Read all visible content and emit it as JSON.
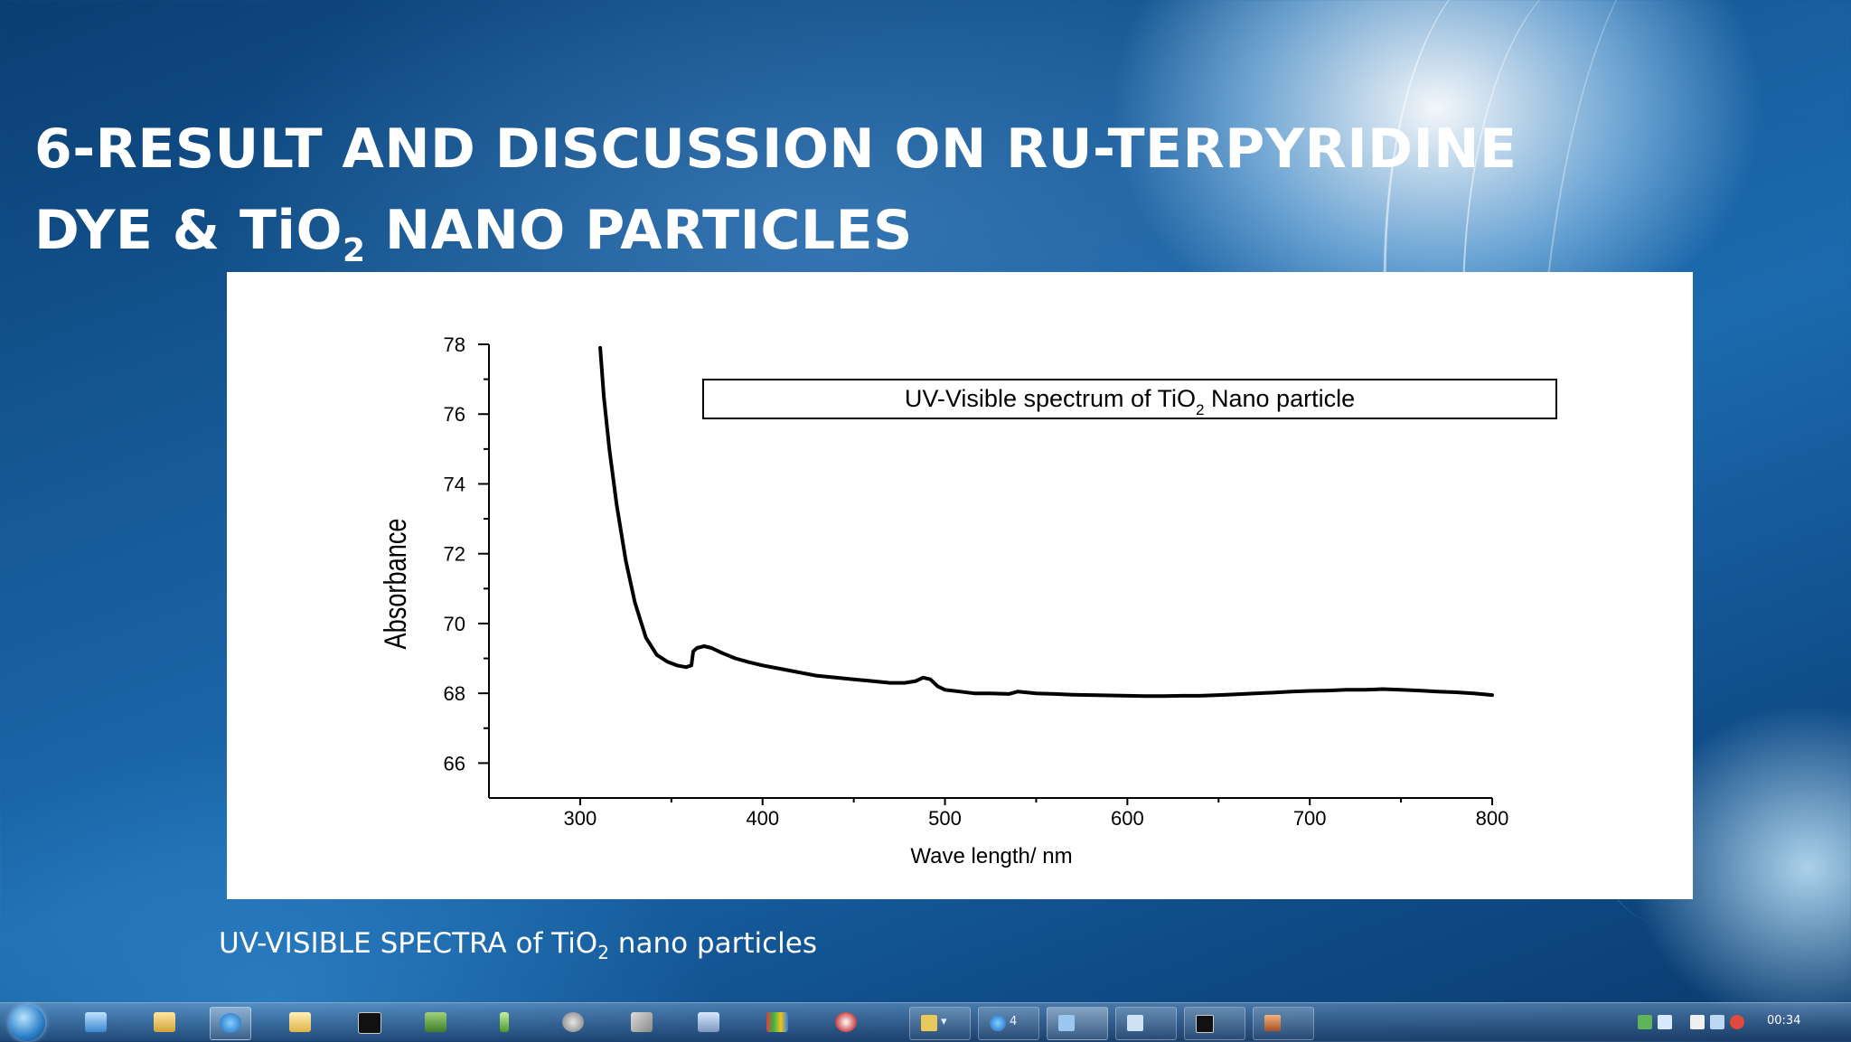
{
  "slide": {
    "title_line1": "6-RESULT AND DISCUSSION ON RU-TERPYRIDINE",
    "title_line2_pre": "DYE & TiO",
    "title_line2_sub": "2",
    "title_line2_post": " NANO PARTICLES",
    "caption_pre": "UV-VISIBLE SPECTRA of TiO",
    "caption_sub": "2",
    "caption_post": " nano particles"
  },
  "chart_data": {
    "type": "line",
    "title_pre": "UV-Visible spectrum of TiO",
    "title_sub": "2",
    "title_post": " Nano particle",
    "xlabel": "Wave length/ nm",
    "ylabel": "Absorbance",
    "xlim": [
      250,
      800
    ],
    "ylim": [
      65,
      78
    ],
    "xticks": [
      300,
      400,
      500,
      600,
      700,
      800
    ],
    "yticks": [
      66,
      68,
      70,
      72,
      74,
      76,
      78
    ],
    "grid": false,
    "legend": "none",
    "line_color": "#000000",
    "series": [
      {
        "x": [
          311,
          313,
          316,
          320,
          325,
          330,
          336,
          342,
          348,
          353,
          358,
          361,
          362,
          364,
          368,
          372,
          378,
          385,
          392,
          400,
          410,
          420,
          430,
          440,
          450,
          460,
          470,
          478,
          484,
          488,
          492,
          496,
          500,
          508,
          516,
          525,
          535,
          540,
          550,
          560,
          570,
          580,
          590,
          600,
          610,
          620,
          630,
          640,
          650,
          660,
          670,
          680,
          690,
          700,
          710,
          720,
          730,
          740,
          750,
          760,
          770,
          780,
          790,
          800
        ],
        "y": [
          77.9,
          76.5,
          75.0,
          73.4,
          71.8,
          70.6,
          69.6,
          69.1,
          68.9,
          68.8,
          68.75,
          68.8,
          69.2,
          69.3,
          69.35,
          69.3,
          69.15,
          69.0,
          68.9,
          68.8,
          68.7,
          68.6,
          68.5,
          68.45,
          68.4,
          68.35,
          68.3,
          68.3,
          68.35,
          68.45,
          68.4,
          68.2,
          68.1,
          68.05,
          68.0,
          68.0,
          67.98,
          68.05,
          68.0,
          67.98,
          67.96,
          67.95,
          67.94,
          67.93,
          67.92,
          67.92,
          67.93,
          67.93,
          67.95,
          67.97,
          68.0,
          68.02,
          68.05,
          68.07,
          68.08,
          68.1,
          68.1,
          68.12,
          68.1,
          68.08,
          68.05,
          68.03,
          68.0,
          67.95
        ]
      }
    ]
  },
  "taskbar": {
    "count_label": "4",
    "clock": "00:34"
  }
}
